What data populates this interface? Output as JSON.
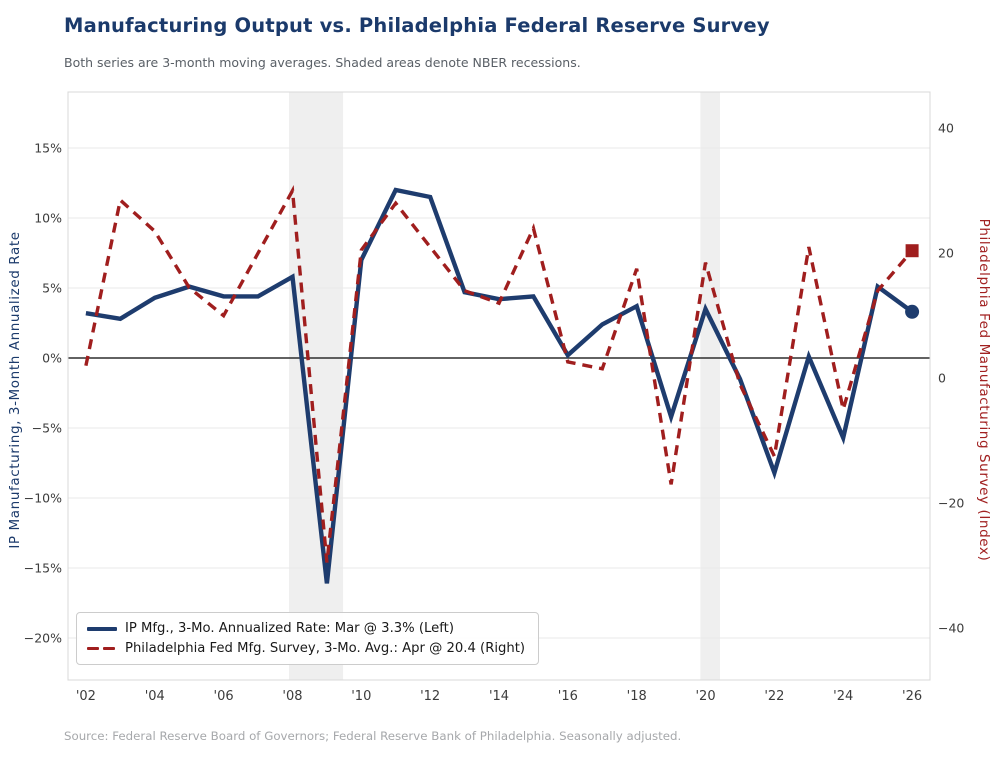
{
  "title": "Manufacturing Output vs. Philadelphia Federal Reserve Survey",
  "subtitle": "Both series are 3-month moving averages. Shaded areas denote NBER recessions.",
  "source": "Source: Federal Reserve Board of Governors; Federal Reserve Bank of Philadelphia. Seasonally adjusted.",
  "colors": {
    "title_navy": "#1b3a6b",
    "series_blue": "#1e3c6e",
    "series_red": "#a01e1e",
    "grid": "#eaeaea",
    "spine": "#d8d8d8",
    "zero_line": "#2e2e2e",
    "recession_band": "#e9e9e9",
    "tick_text": "#3c3c3c"
  },
  "chart_data": {
    "type": "line",
    "x": [
      2002,
      2003,
      2004,
      2005,
      2006,
      2007,
      2008,
      2009,
      2010,
      2011,
      2012,
      2013,
      2014,
      2015,
      2016,
      2017,
      2018,
      2019,
      2020,
      2021,
      2022,
      2023,
      2024,
      2025,
      2026
    ],
    "xlim": [
      2001.48,
      2026.52
    ],
    "x_ticks": {
      "values": [
        2002,
        2004,
        2006,
        2008,
        2010,
        2012,
        2014,
        2016,
        2018,
        2020,
        2022,
        2024,
        2026
      ],
      "labels": [
        "'02",
        "'04",
        "'06",
        "'08",
        "'10",
        "'12",
        "'14",
        "'16",
        "'18",
        "'20",
        "'22",
        "'24",
        "'26"
      ]
    },
    "left_axis": {
      "label": "IP Manufacturing, 3-Month Annualized Rate",
      "ylim": [
        -23,
        19
      ],
      "tick_values": [
        15,
        10,
        5,
        0,
        -5,
        -10,
        -15,
        -20
      ],
      "tick_labels": [
        "15%",
        "10%",
        "5%",
        "0%",
        "−5%",
        "−10%",
        "−15%",
        "−20%"
      ]
    },
    "right_axis": {
      "label": "Philadelphia Fed Manufacturing Survey (Index)",
      "ylim": [
        -48.3,
        45.8
      ],
      "tick_values": [
        40,
        20,
        0,
        -20,
        -40
      ],
      "tick_labels": [
        "40",
        "20",
        "0",
        "−20",
        "−40"
      ]
    },
    "series": [
      {
        "name": "IP Mfg., 3-Mo. Annualized Rate: Mar @ 3.3% (Left)",
        "axis": "left",
        "line_style": "solid",
        "color": "#1e3c6e",
        "end_marker": "circle",
        "values": [
          3.2,
          2.8,
          4.3,
          5.1,
          4.4,
          4.4,
          5.8,
          -16.1,
          7.0,
          12.0,
          11.5,
          4.7,
          4.2,
          4.4,
          0.2,
          2.4,
          3.7,
          -4.2,
          3.5,
          -1.5,
          -8.2,
          0.1,
          -5.7,
          5.1,
          3.3
        ]
      },
      {
        "name": "Philadelphia Fed Mfg. Survey, 3-Mo. Avg.: Apr @ 20.4 (Right)",
        "axis": "right",
        "line_style": "dashed",
        "color": "#a01e1e",
        "end_marker": "square",
        "values": [
          2.0,
          28.5,
          23.5,
          14.5,
          10.0,
          20.0,
          30.0,
          -29.5,
          20.5,
          28.0,
          21.0,
          14.0,
          12.0,
          24.0,
          2.6,
          1.5,
          17.5,
          -17.0,
          18.5,
          -1.0,
          -12.5,
          21.0,
          -5.0,
          14.0,
          20.4
        ]
      }
    ],
    "recessions": [
      [
        2007.9,
        2009.47
      ],
      [
        2019.85,
        2020.42
      ]
    ],
    "grid": true,
    "zero_line": true,
    "legend_position": "lower left"
  }
}
